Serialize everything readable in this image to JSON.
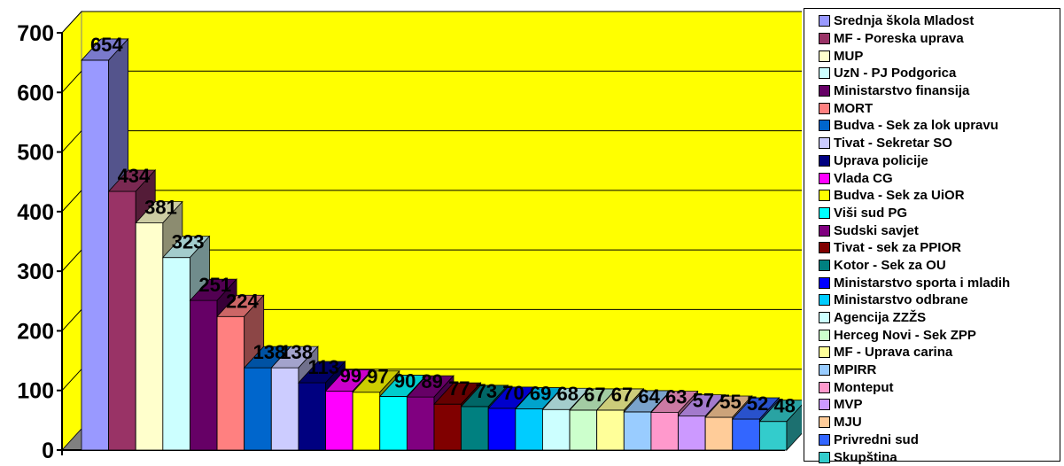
{
  "chart_data": {
    "type": "bar",
    "three_d": true,
    "ylim": [
      0,
      700
    ],
    "yticks": [
      0,
      100,
      200,
      300,
      400,
      500,
      600,
      700
    ],
    "grid": true,
    "legend_position": "right",
    "wall_color": "#FFFF00",
    "floor_color": "#808080",
    "series": [
      {
        "name": "Srednja škola Mladost",
        "value": 654,
        "color": "#9999FF"
      },
      {
        "name": "MF - Poreska uprava",
        "value": 434,
        "color": "#993366"
      },
      {
        "name": "MUP",
        "value": 381,
        "color": "#FFFFCC"
      },
      {
        "name": "UzN - PJ Podgorica",
        "value": 323,
        "color": "#CCFFFF"
      },
      {
        "name": "Ministarstvo finansija",
        "value": 251,
        "color": "#660066"
      },
      {
        "name": "MORT",
        "value": 224,
        "color": "#FF8080"
      },
      {
        "name": "Budva - Sek za lok upravu",
        "value": 138,
        "color": "#0066CC"
      },
      {
        "name": "Tivat - Sekretar SO",
        "value": 138,
        "color": "#CCCCFF"
      },
      {
        "name": "Uprava policije",
        "value": 113,
        "color": "#000080"
      },
      {
        "name": "Vlada CG",
        "value": 99,
        "color": "#FF00FF"
      },
      {
        "name": "Budva - Sek za UiOR",
        "value": 97,
        "color": "#FFFF00"
      },
      {
        "name": "Viši sud PG",
        "value": 90,
        "color": "#00FFFF"
      },
      {
        "name": "Sudski savjet",
        "value": 89,
        "color": "#800080"
      },
      {
        "name": "Tivat - sek za PPIOR",
        "value": 77,
        "color": "#800000"
      },
      {
        "name": "Kotor - Sek za OU",
        "value": 73,
        "color": "#008080"
      },
      {
        "name": "Ministarstvo sporta i mladih",
        "value": 70,
        "color": "#0000FF"
      },
      {
        "name": "Ministarstvo odbrane",
        "value": 69,
        "color": "#00CCFF"
      },
      {
        "name": "Agencija ZZŽS",
        "value": 68,
        "color": "#CCFFFF"
      },
      {
        "name": "Herceg Novi - Sek ZPP",
        "value": 67,
        "color": "#CCFFCC"
      },
      {
        "name": "MF - Uprava carina",
        "value": 67,
        "color": "#FFFF99"
      },
      {
        "name": "MPIRR",
        "value": 64,
        "color": "#99CCFF"
      },
      {
        "name": "Monteput",
        "value": 63,
        "color": "#FF99CC"
      },
      {
        "name": "MVP",
        "value": 57,
        "color": "#CC99FF"
      },
      {
        "name": "MJU",
        "value": 55,
        "color": "#FFCC99"
      },
      {
        "name": "Privredni sud",
        "value": 52,
        "color": "#3366FF"
      },
      {
        "name": "Skupština",
        "value": 48,
        "color": "#33CCCC"
      }
    ]
  }
}
